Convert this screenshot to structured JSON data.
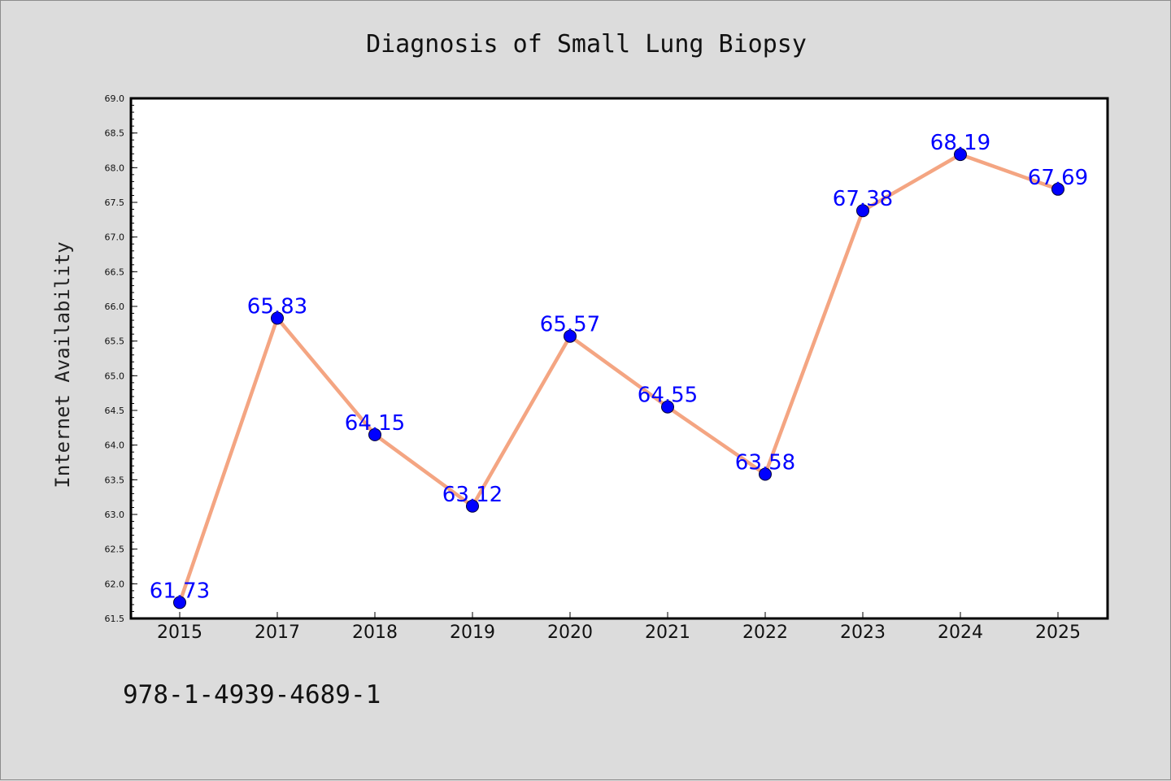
{
  "chart_data": {
    "type": "line",
    "title": "Diagnosis of Small Lung Biopsy",
    "xlabel": "",
    "ylabel": "Internet Availability",
    "categories": [
      "2015",
      "2017",
      "2018",
      "2019",
      "2020",
      "2021",
      "2022",
      "2023",
      "2024",
      "2025"
    ],
    "series": [
      {
        "values": [
          61.73,
          65.83,
          64.15,
          63.12,
          65.57,
          64.55,
          63.58,
          67.38,
          68.19,
          67.69
        ],
        "labels": [
          "61.73",
          "65.83",
          "64.15",
          "63.12",
          "65.57",
          "64.55",
          "63.58",
          "67.38",
          "68.19",
          "67.69"
        ]
      }
    ],
    "ylim": [
      61.5,
      69.0
    ],
    "yticks": [
      "61.5",
      "62.0",
      "62.5",
      "63.0",
      "63.5",
      "64.0",
      "64.5",
      "65.0",
      "65.5",
      "66.0",
      "66.5",
      "67.0",
      "67.5",
      "68.0",
      "68.5",
      "69.0"
    ],
    "grid": false,
    "legend": "none"
  },
  "footer": {
    "text": "978-1-4939-4689-1"
  },
  "colors": {
    "background": "#dcdcdc",
    "plot_background": "#ffffff",
    "line": "#f4a582",
    "marker": "#0000ff",
    "data_label": "#0000ff"
  }
}
